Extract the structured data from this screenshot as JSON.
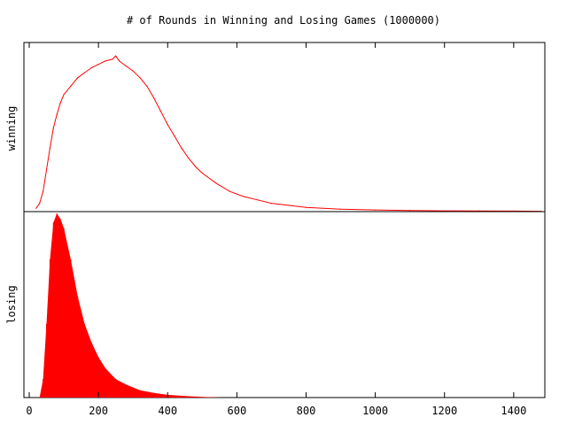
{
  "chart_data": {
    "type": "line",
    "title": "# of Rounds in Winning and Losing Games (1000000)",
    "x_ticks": [
      0,
      200,
      400,
      600,
      800,
      1000,
      1200,
      1400
    ],
    "xlim": [
      0,
      1490
    ],
    "grid": false,
    "series_color": "#ff0000",
    "panels": [
      {
        "name": "winning",
        "ylabel": "winning",
        "style": "line",
        "ylim": [
          0,
          1.0
        ],
        "x": [
          20,
          30,
          40,
          50,
          60,
          70,
          80,
          90,
          100,
          120,
          140,
          160,
          180,
          200,
          220,
          240,
          250,
          260,
          280,
          300,
          320,
          340,
          360,
          380,
          400,
          420,
          440,
          460,
          480,
          500,
          540,
          580,
          620,
          660,
          700,
          760,
          800,
          900,
          1000,
          1100,
          1200,
          1300,
          1400,
          1480
        ],
        "values": [
          0.02,
          0.05,
          0.12,
          0.25,
          0.38,
          0.5,
          0.58,
          0.65,
          0.7,
          0.75,
          0.8,
          0.83,
          0.86,
          0.88,
          0.9,
          0.91,
          0.93,
          0.9,
          0.87,
          0.84,
          0.8,
          0.75,
          0.68,
          0.6,
          0.52,
          0.45,
          0.38,
          0.32,
          0.27,
          0.23,
          0.17,
          0.12,
          0.09,
          0.07,
          0.05,
          0.035,
          0.025,
          0.015,
          0.01,
          0.007,
          0.005,
          0.004,
          0.003,
          0.002
        ]
      },
      {
        "name": "losing",
        "ylabel": "losing",
        "style": "impulse",
        "ylim": [
          0,
          1.0
        ],
        "x": [
          30,
          40,
          50,
          60,
          70,
          80,
          90,
          100,
          120,
          140,
          160,
          180,
          200,
          220,
          250,
          280,
          320,
          360,
          400,
          450,
          500,
          560
        ],
        "values": [
          0.0,
          0.1,
          0.4,
          0.75,
          0.95,
          1.0,
          0.97,
          0.92,
          0.75,
          0.55,
          0.4,
          0.3,
          0.22,
          0.16,
          0.1,
          0.07,
          0.04,
          0.025,
          0.015,
          0.008,
          0.004,
          0.0
        ]
      }
    ]
  }
}
